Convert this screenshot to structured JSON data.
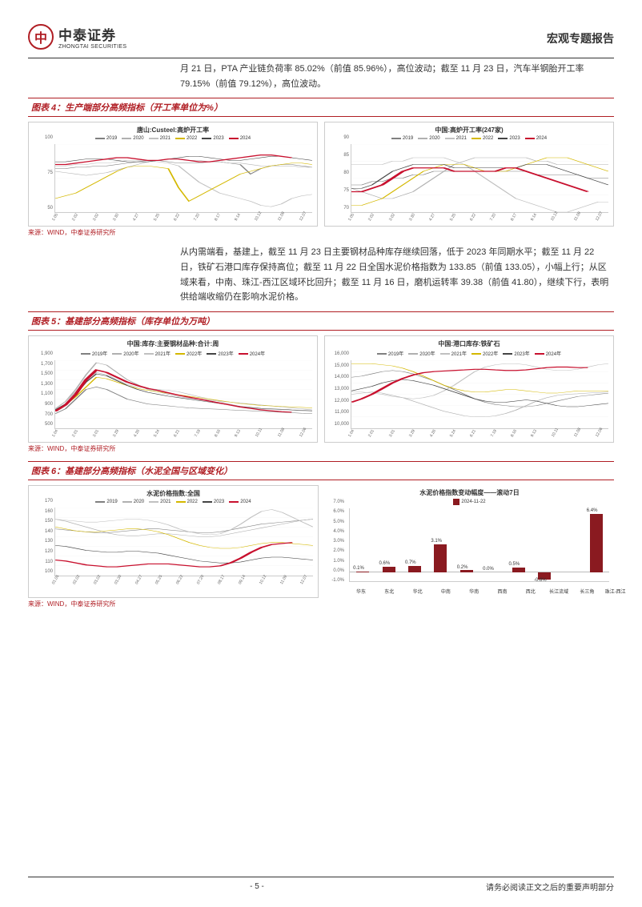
{
  "header": {
    "logo_cn": "中泰证券",
    "logo_en": "ZHONGTAI SECURITIES",
    "logo_glyph": "中",
    "report_type": "宏观专题报告"
  },
  "para1": "月 21 日，PTA 产业链负荷率 85.02%（前值 85.96%），高位波动；截至 11 月 23 日，汽车半钢胎开工率 79.15%（前值 79.12%），高位波动。",
  "fig4": {
    "title": "图表 4：生产端部分高频指标（开工率单位为%）"
  },
  "para2": "从内需端看，基建上，截至 11 月 23 日主要钢材品种库存继续回落，低于 2023 年同期水平；截至 11 月 22 日，铁矿石港口库存保持高位；截至 11 月 22 日全国水泥价格指数为 133.85（前值 133.05），小幅上行；从区域来看，中南、珠江-西江区域环比回升；截至 11 月 16 日，磨机运转率 39.38（前值 41.80），继续下行，表明供给端收缩仍在影响水泥价格。",
  "fig5": {
    "title": "图表 5：基建部分高频指标（库存单位为万吨）"
  },
  "fig6": {
    "title": "图表 6：基建部分高频指标（水泥全国与区域变化）"
  },
  "source": "来源：WIND，中泰证券研究所",
  "footer": {
    "page": "- 5 -",
    "disclaimer": "请务必阅读正文之后的重要声明部分"
  },
  "legend_years": [
    "2019年",
    "2020年",
    "2021年",
    "2022年",
    "2023年",
    "2024年"
  ],
  "legend_years_alt": [
    "2019",
    "2020",
    "2021",
    "2022",
    "2023",
    "2024"
  ],
  "series_colors": {
    "2019": "#808080",
    "2020": "#b0b0b0",
    "2021": "#c0c0c0",
    "2022": "#d4b800",
    "2023": "#444444",
    "2024": "#c8102e"
  },
  "chart4a": {
    "title": "唐山:Custeel:高炉开工率",
    "ylim": [
      50,
      100
    ],
    "yticks": [
      50,
      75,
      100
    ],
    "xticks": [
      "1.05",
      "1.19",
      "2.02",
      "2.16",
      "3.02",
      "3.16",
      "3.30",
      "4.13",
      "4.27",
      "5.11",
      "5.25",
      "6.08",
      "6.22",
      "7.06",
      "7.20",
      "8.03",
      "8.17",
      "8.31",
      "9.14",
      "9.28",
      "10.12",
      "10.26",
      "11.09",
      "11.23",
      "12.07",
      "12.21"
    ],
    "series": {
      "2019": [
        82,
        82,
        83,
        83,
        84,
        84,
        85,
        86,
        87,
        88,
        88,
        87,
        86,
        86,
        86,
        87,
        87,
        86,
        85,
        78,
        82,
        84,
        85,
        85,
        84,
        83
      ],
      "2020": [
        80,
        79,
        78,
        77,
        78,
        79,
        81,
        83,
        85,
        87,
        88,
        89,
        89,
        88,
        88,
        87,
        87,
        86,
        86,
        85,
        84,
        84,
        84,
        84,
        83,
        83
      ],
      "2021": [
        84,
        84,
        85,
        85,
        86,
        86,
        87,
        88,
        88,
        88,
        87,
        86,
        84,
        78,
        72,
        68,
        64,
        62,
        60,
        58,
        55,
        54,
        56,
        60,
        62,
        63
      ],
      "2022": [
        60,
        62,
        64,
        68,
        72,
        76,
        80,
        83,
        84,
        84,
        83,
        82,
        68,
        58,
        62,
        66,
        70,
        74,
        78,
        80,
        82,
        84,
        85,
        86,
        86,
        85
      ],
      "2023": [
        87,
        87,
        88,
        89,
        89,
        89,
        88,
        87,
        87,
        87,
        88,
        89,
        90,
        91,
        91,
        90,
        89,
        88,
        88,
        89,
        90,
        91,
        91,
        90,
        89,
        88
      ],
      "2024": [
        85,
        85,
        86,
        87,
        88,
        89,
        90,
        90,
        89,
        88,
        88,
        89,
        89,
        88,
        87,
        87,
        88,
        89,
        90,
        91,
        92,
        92,
        91,
        90
      ]
    }
  },
  "chart4b": {
    "title": "中国:高炉开工率(247家)",
    "ylim": [
      70,
      90
    ],
    "yticks": [
      70,
      75,
      80,
      85,
      90
    ],
    "xticks": [
      "1.05",
      "1.19",
      "2.02",
      "2.16",
      "3.02",
      "3.16",
      "3.30",
      "4.13",
      "4.27",
      "5.11",
      "5.25",
      "6.08",
      "6.22",
      "7.06",
      "7.20",
      "8.03",
      "8.17",
      "8.31",
      "9.14",
      "9.28",
      "10.12",
      "10.26",
      "11.09",
      "11.23",
      "12.07",
      "12.21"
    ],
    "series": {
      "2019": [
        78,
        78,
        79,
        79,
        80,
        80,
        81,
        81,
        82,
        82,
        82,
        82,
        82,
        82,
        82,
        82,
        82,
        82,
        81,
        81,
        81,
        81,
        81,
        80,
        80,
        80
      ],
      "2020": [
        77,
        76,
        75,
        74,
        74,
        75,
        76,
        78,
        80,
        82,
        84,
        85,
        86,
        86,
        86,
        86,
        86,
        86,
        85,
        85,
        84,
        84,
        84,
        84,
        84,
        84
      ],
      "2021": [
        84,
        84,
        84,
        84,
        85,
        85,
        86,
        86,
        86,
        86,
        85,
        84,
        82,
        80,
        78,
        76,
        74,
        73,
        72,
        71,
        70,
        70,
        71,
        72,
        73,
        73
      ],
      "2022": [
        72,
        72,
        73,
        74,
        76,
        78,
        80,
        82,
        83,
        84,
        84,
        84,
        83,
        82,
        82,
        82,
        83,
        84,
        85,
        86,
        86,
        86,
        85,
        84,
        83,
        82
      ],
      "2023": [
        77,
        77,
        78,
        80,
        82,
        83,
        84,
        84,
        84,
        84,
        83,
        83,
        83,
        83,
        83,
        83,
        83,
        84,
        84,
        84,
        83,
        82,
        81,
        80,
        79,
        78
      ],
      "2024": [
        76,
        76,
        77,
        78,
        80,
        82,
        83,
        83,
        83,
        83,
        82,
        82,
        82,
        82,
        82,
        83,
        83,
        82,
        81,
        80,
        79,
        78,
        77,
        76
      ]
    }
  },
  "chart5a": {
    "title": "中国:库存:主要钢材品种:合计:周",
    "ylim": [
      500,
      1900
    ],
    "yticks": [
      500,
      700,
      900,
      1100,
      1300,
      1500,
      1700,
      1900
    ],
    "xticks": [
      "1.04",
      "1.18",
      "2.01",
      "2.15",
      "3.01",
      "3.15",
      "3.29",
      "4.12",
      "4.26",
      "5.10",
      "5.24",
      "6.07",
      "6.21",
      "7.05",
      "7.19",
      "8.02",
      "8.16",
      "8.30",
      "9.13",
      "9.27",
      "10.11",
      "10.25",
      "11.08",
      "11.22",
      "12.06",
      "12.20"
    ],
    "series": {
      "2019": [
        800,
        900,
        1100,
        1300,
        1350,
        1300,
        1200,
        1100,
        1050,
        1000,
        980,
        960,
        940,
        920,
        910,
        900,
        890,
        880,
        870,
        860,
        850,
        840,
        830,
        820,
        810,
        800
      ],
      "2020": [
        900,
        1050,
        1300,
        1600,
        1850,
        1800,
        1650,
        1500,
        1400,
        1300,
        1250,
        1200,
        1150,
        1120,
        1100,
        1080,
        1060,
        1040,
        1020,
        1000,
        980,
        960,
        940,
        920,
        900,
        880
      ],
      "2021": [
        900,
        1050,
        1250,
        1500,
        1650,
        1600,
        1500,
        1400,
        1350,
        1320,
        1300,
        1280,
        1250,
        1200,
        1150,
        1100,
        1050,
        1000,
        950,
        920,
        900,
        890,
        880,
        870,
        860,
        850
      ],
      "2022": [
        870,
        980,
        1150,
        1350,
        1550,
        1520,
        1450,
        1380,
        1320,
        1280,
        1250,
        1220,
        1190,
        1160,
        1130,
        1100,
        1070,
        1040,
        1010,
        990,
        970,
        960,
        950,
        940,
        930,
        920
      ],
      "2023": [
        880,
        1000,
        1200,
        1450,
        1620,
        1580,
        1480,
        1380,
        1300,
        1240,
        1200,
        1160,
        1130,
        1100,
        1070,
        1040,
        1010,
        980,
        950,
        930,
        910,
        900,
        890,
        880,
        870,
        860
      ],
      "2024": [
        850,
        980,
        1200,
        1500,
        1700,
        1650,
        1550,
        1450,
        1380,
        1320,
        1280,
        1230,
        1180,
        1140,
        1100,
        1060,
        1020,
        980,
        940,
        910,
        880,
        860,
        840,
        830
      ]
    }
  },
  "chart5b": {
    "title": "中国:港口库存:铁矿石",
    "ylim": [
      10000,
      16000
    ],
    "yticks": [
      10000,
      11000,
      12000,
      13000,
      14000,
      15000,
      16000
    ],
    "xticks": [
      "1.04",
      "1.18",
      "2.01",
      "2.15",
      "3.01",
      "3.15",
      "3.29",
      "4.12",
      "4.26",
      "5.10",
      "5.24",
      "6.07",
      "6.21",
      "7.05",
      "7.19",
      "8.02",
      "8.16",
      "8.30",
      "9.13",
      "9.27",
      "10.11",
      "10.25",
      "11.08",
      "11.22",
      "12.06",
      "12.20"
    ],
    "series": {
      "2019": [
        14500,
        14600,
        14800,
        15000,
        15100,
        15000,
        14800,
        14500,
        14200,
        13800,
        13400,
        13000,
        12600,
        12300,
        12100,
        12000,
        11900,
        11900,
        12000,
        12200,
        12400,
        12600,
        12800,
        12900,
        13000,
        13100
      ],
      "2020": [
        13000,
        13100,
        13200,
        13100,
        12900,
        12700,
        12400,
        12100,
        11800,
        11500,
        11300,
        11100,
        11000,
        11000,
        11100,
        11300,
        11600,
        12000,
        12400,
        12700,
        12900,
        13000,
        13050,
        13100,
        13150,
        13200
      ],
      "2021": [
        13200,
        13200,
        13100,
        13000,
        12800,
        12700,
        12600,
        12700,
        12900,
        13300,
        13800,
        14400,
        15000,
        15400,
        15600,
        15700,
        15700,
        15600,
        15400,
        15200,
        15100,
        15100,
        15200,
        15400,
        15600,
        15700
      ],
      "2022": [
        15700,
        15700,
        15700,
        15600,
        15500,
        15300,
        15000,
        14600,
        14200,
        13800,
        13500,
        13300,
        13200,
        13200,
        13300,
        13400,
        13400,
        13300,
        13200,
        13100,
        13100,
        13200,
        13300,
        13300,
        13300,
        13300
      ],
      "2023": [
        13300,
        13500,
        13700,
        14000,
        14200,
        14300,
        14200,
        14000,
        13800,
        13500,
        13200,
        12900,
        12600,
        12400,
        12300,
        12300,
        12400,
        12500,
        12400,
        12200,
        12000,
        11900,
        11900,
        12000,
        12100,
        12200
      ],
      "2024": [
        12300,
        12600,
        13000,
        13500,
        14000,
        14400,
        14700,
        14900,
        15000,
        15050,
        15100,
        15150,
        15200,
        15200,
        15150,
        15100,
        15100,
        15150,
        15250,
        15350,
        15400,
        15400,
        15350,
        15350
      ]
    }
  },
  "chart6a": {
    "title": "水泥价格指数:全国",
    "ylim": [
      100,
      170
    ],
    "yticks": [
      100,
      110,
      120,
      130,
      140,
      150,
      160,
      170
    ],
    "xticks": [
      "01.05",
      "01.19",
      "02.02",
      "02.16",
      "03.02",
      "03.16",
      "03.30",
      "04.13",
      "04.27",
      "05.11",
      "05.25",
      "06.08",
      "06.22",
      "07.06",
      "07.20",
      "08.03",
      "08.17",
      "08.31",
      "09.14",
      "09.28",
      "10.12",
      "10.26",
      "11.09",
      "11.23",
      "12.07",
      "12.21"
    ],
    "series": {
      "2019": [
        148,
        147,
        146,
        145,
        144,
        144,
        145,
        146,
        147,
        148,
        148,
        147,
        146,
        145,
        144,
        144,
        145,
        147,
        149,
        151,
        153,
        154,
        155,
        156,
        157,
        158
      ],
      "2020": [
        158,
        156,
        153,
        150,
        147,
        144,
        142,
        141,
        141,
        142,
        143,
        143,
        142,
        141,
        140,
        140,
        141,
        143,
        145,
        147,
        149,
        151,
        153,
        155,
        157,
        158
      ],
      "2021": [
        158,
        157,
        156,
        155,
        155,
        156,
        157,
        158,
        158,
        157,
        155,
        152,
        148,
        145,
        143,
        142,
        143,
        147,
        153,
        160,
        166,
        168,
        165,
        160,
        155,
        150
      ],
      "2022": [
        150,
        148,
        146,
        145,
        145,
        146,
        147,
        148,
        148,
        147,
        145,
        142,
        138,
        134,
        131,
        129,
        128,
        128,
        129,
        131,
        133,
        134,
        134,
        133,
        132,
        131
      ],
      "2023": [
        131,
        130,
        128,
        126,
        125,
        124,
        124,
        125,
        125,
        124,
        123,
        121,
        119,
        117,
        115,
        114,
        113,
        113,
        114,
        116,
        118,
        119,
        119,
        118,
        117,
        116
      ],
      "2024": [
        116,
        115,
        113,
        111,
        110,
        109,
        109,
        110,
        111,
        112,
        112,
        112,
        111,
        110,
        109,
        109,
        110,
        113,
        118,
        124,
        129,
        132,
        133,
        134
      ]
    }
  },
  "chart6b": {
    "title": "水泥价格指数变动幅度——滚动7日",
    "date_label": "2024-11-22",
    "ylim": [
      -1,
      7
    ],
    "yticks": [
      -1,
      0,
      1,
      2,
      3,
      4,
      5,
      6,
      7
    ],
    "categories": [
      "华东",
      "东北",
      "华北",
      "中南",
      "华南",
      "西南",
      "西北",
      "长江流域",
      "长三角",
      "珠江-西江"
    ],
    "values": [
      0.1,
      0.6,
      0.7,
      3.1,
      0.2,
      0.0,
      0.5,
      -0.8,
      null,
      6.4
    ],
    "bar_color": "#8a1a20",
    "value_labels": [
      "0.1%",
      "0.6%",
      "0.7%",
      "3.1%",
      "0.2%",
      "0.0%",
      "0.5%",
      "-0.8%",
      "",
      "6.4%"
    ]
  }
}
